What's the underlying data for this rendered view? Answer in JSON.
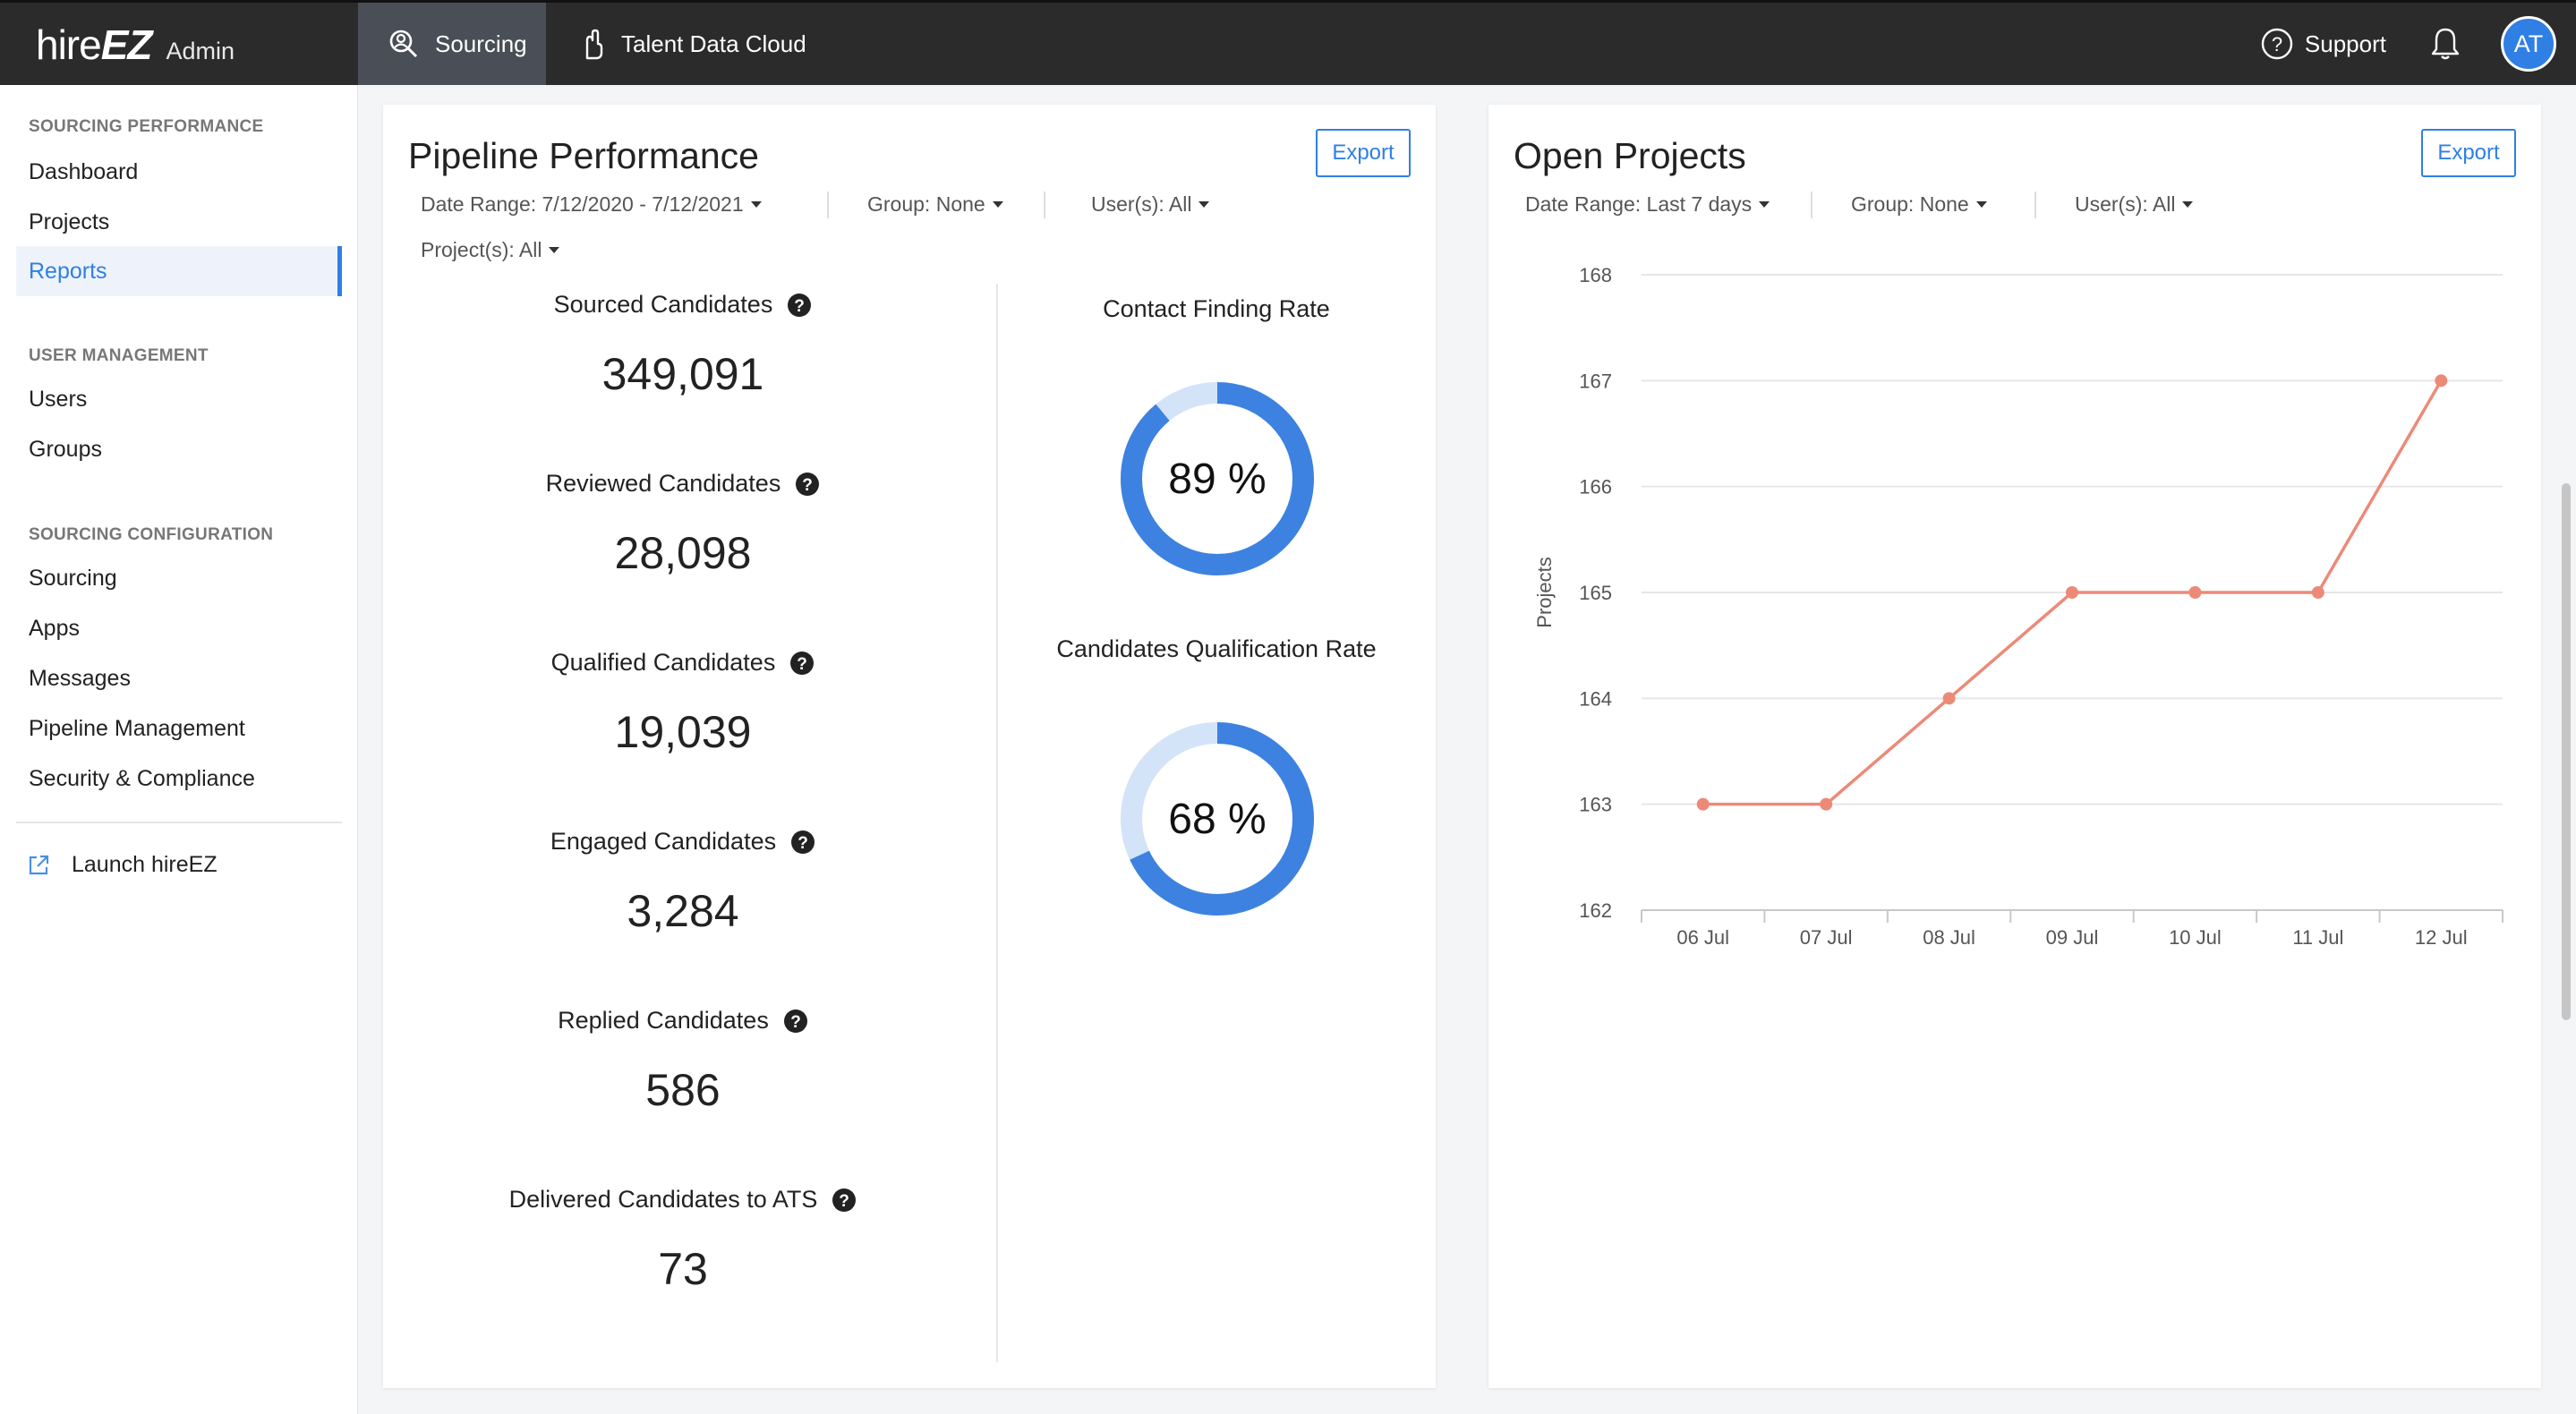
{
  "app": {
    "logo_text": "hire",
    "logo_bold": "EZ",
    "logo_sub": "Admin"
  },
  "topnav": {
    "tabs": [
      {
        "label": "Sourcing",
        "icon": "search-user-icon",
        "active": true
      },
      {
        "label": "Talent Data Cloud",
        "icon": "cloud-hand-icon",
        "active": false
      }
    ],
    "support_label": "Support",
    "avatar_initials": "AT"
  },
  "sidebar": {
    "sections": [
      {
        "title": "SOURCING PERFORMANCE",
        "items": [
          "Dashboard",
          "Projects",
          "Reports"
        ]
      },
      {
        "title": "USER MANAGEMENT",
        "items": [
          "Users",
          "Groups"
        ]
      },
      {
        "title": "SOURCING CONFIGURATION",
        "items": [
          "Sourcing",
          "Apps",
          "Messages",
          "Pipeline Management",
          "Security & Compliance"
        ]
      }
    ],
    "active_item": "Reports",
    "launch_label": "Launch hireEZ"
  },
  "pipeline": {
    "title": "Pipeline Performance",
    "export_label": "Export",
    "filters": {
      "date_range": "Date Range: 7/12/2020 - 7/12/2021",
      "group": "Group: None",
      "users": "User(s): All",
      "projects": "Project(s): All"
    },
    "metrics": [
      {
        "label": "Sourced Candidates",
        "value": "349,091"
      },
      {
        "label": "Reviewed Candidates",
        "value": "28,098"
      },
      {
        "label": "Qualified Candidates",
        "value": "19,039"
      },
      {
        "label": "Engaged Candidates",
        "value": "3,284"
      },
      {
        "label": "Replied Candidates",
        "value": "586"
      },
      {
        "label": "Delivered Candidates to ATS",
        "value": "73"
      }
    ],
    "rates": [
      {
        "label": "Contact Finding Rate",
        "percent": 89,
        "display": "89 %"
      },
      {
        "label": "Candidates Qualification Rate",
        "percent": 68,
        "display": "68 %"
      }
    ],
    "colors": {
      "donut_fill": "#3d82e0",
      "donut_track": "#d3e3f8"
    }
  },
  "open_projects": {
    "title": "Open Projects",
    "export_label": "Export",
    "filters": {
      "date_range": "Date Range: Last 7 days",
      "group": "Group: None",
      "users": "User(s): All"
    }
  },
  "chart_data": {
    "type": "line",
    "title": "",
    "xlabel": "",
    "ylabel": "Projects",
    "categories": [
      "06 Jul",
      "07 Jul",
      "08 Jul",
      "09 Jul",
      "10 Jul",
      "11 Jul",
      "12 Jul"
    ],
    "series": [
      {
        "values": [
          163,
          163,
          164,
          165,
          165,
          165,
          167
        ]
      }
    ],
    "ylim": [
      162,
      168
    ],
    "yticks": [
      162,
      163,
      164,
      165,
      166,
      167,
      168
    ],
    "grid": true,
    "line_color": "#ec8a78"
  }
}
